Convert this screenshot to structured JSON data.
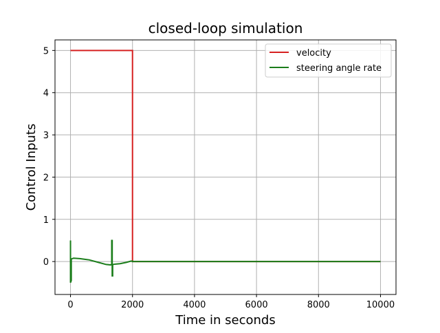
{
  "chart_data": {
    "type": "line",
    "title": "closed-loop simulation",
    "xlabel": "Time in seconds",
    "ylabel": "Control Inputs",
    "xlim": [
      -500,
      10500
    ],
    "ylim": [
      -0.78,
      5.25
    ],
    "xticks": [
      0,
      2000,
      4000,
      6000,
      8000,
      10000
    ],
    "xtick_labels": [
      "0",
      "2000",
      "4000",
      "6000",
      "8000",
      "10000"
    ],
    "yticks": [
      0,
      1,
      2,
      3,
      4,
      5
    ],
    "ytick_labels": [
      "0",
      "1",
      "2",
      "3",
      "4",
      "5"
    ],
    "grid": true,
    "legend_position": "top-right",
    "series": [
      {
        "name": "velocity",
        "color": "#d62020",
        "points": [
          [
            0,
            5
          ],
          [
            2000,
            5
          ],
          [
            2000,
            0
          ],
          [
            10000,
            0
          ]
        ]
      },
      {
        "name": "steering angle rate",
        "color": "#1a7d1a",
        "points": [
          [
            0,
            0.5
          ],
          [
            0,
            -0.5
          ],
          [
            25,
            -0.45
          ],
          [
            25,
            0.06
          ],
          [
            100,
            0.08
          ],
          [
            300,
            0.07
          ],
          [
            600,
            0.04
          ],
          [
            900,
            -0.02
          ],
          [
            1150,
            -0.07
          ],
          [
            1300,
            -0.08
          ],
          [
            1330,
            -0.06
          ],
          [
            1330,
            0.5
          ],
          [
            1345,
            0.5
          ],
          [
            1345,
            -0.34
          ],
          [
            1360,
            -0.34
          ],
          [
            1360,
            -0.07
          ],
          [
            1450,
            -0.06
          ],
          [
            1600,
            -0.05
          ],
          [
            1800,
            -0.02
          ],
          [
            1950,
            0.01
          ],
          [
            2000,
            0.01
          ],
          [
            2000,
            0.0
          ],
          [
            10000,
            0.0
          ]
        ]
      }
    ]
  }
}
